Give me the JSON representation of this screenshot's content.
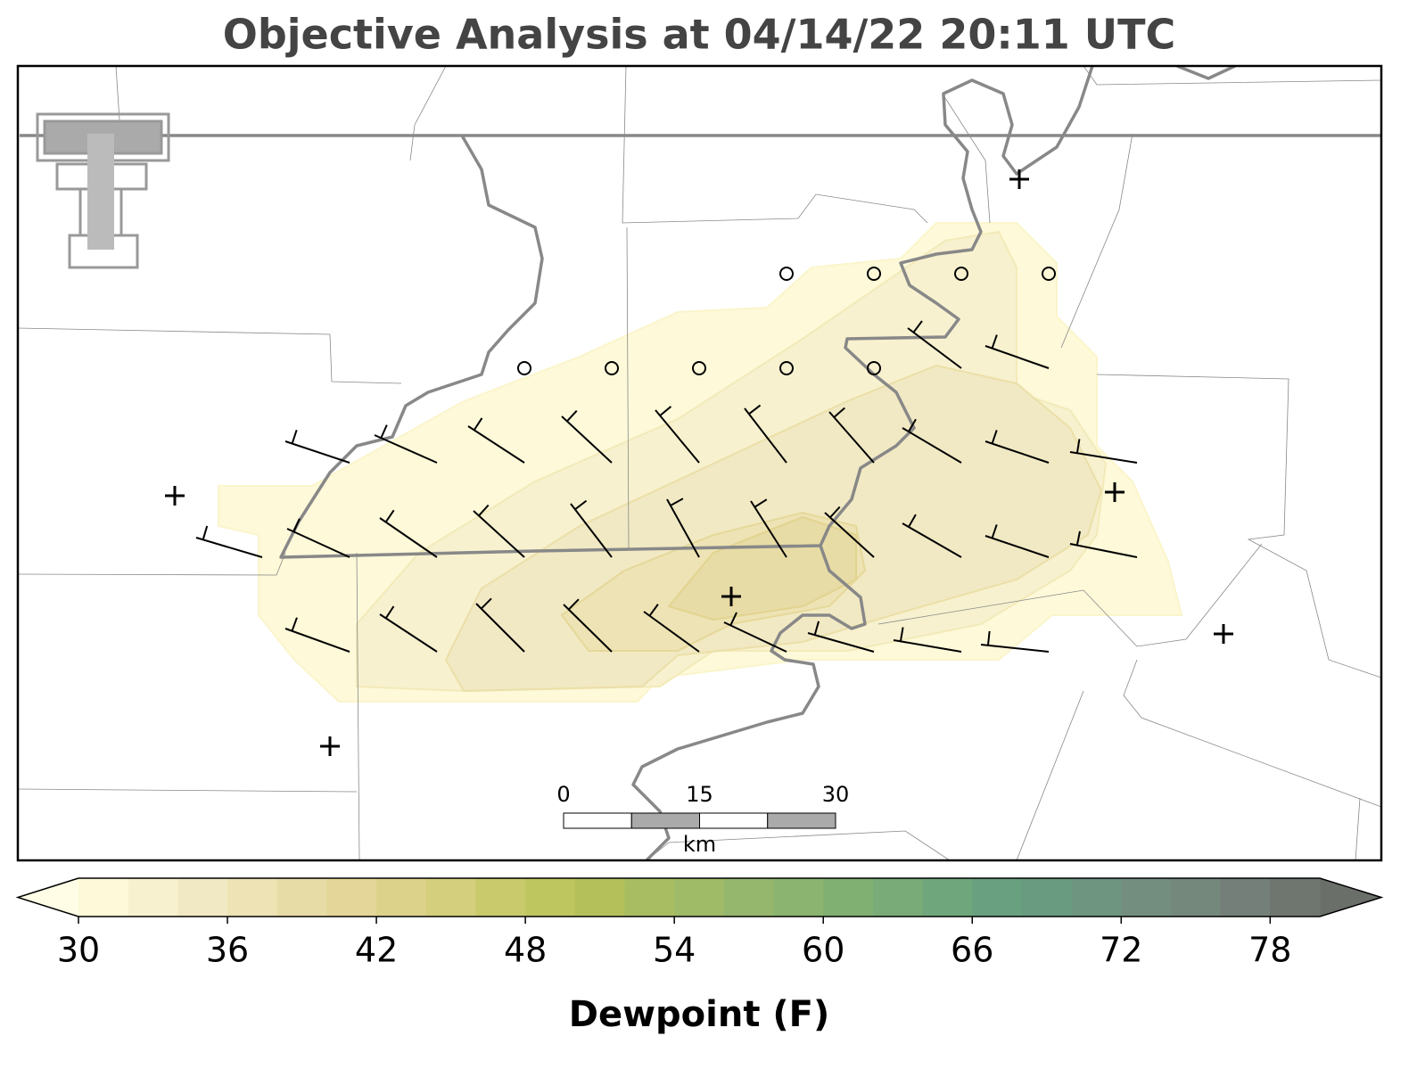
{
  "title": "Objective Analysis at 04/14/22 20:11 UTC",
  "colorbar": {
    "label": "Dewpoint (F)",
    "levels": [
      30,
      32,
      34,
      36,
      38,
      40,
      42,
      44,
      46,
      48,
      50,
      52,
      54,
      56,
      58,
      60,
      62,
      64,
      66,
      68,
      70,
      72,
      74,
      76,
      78,
      80
    ],
    "colors": [
      "#fdf9d9",
      "#f7f1cf",
      "#f1e9c3",
      "#ede3b4",
      "#e8dca6",
      "#e3d698",
      "#ddd28a",
      "#d4cf7c",
      "#c8ca6c",
      "#bec65f",
      "#b4c15a",
      "#a8bd62",
      "#9fbb68",
      "#95b76d",
      "#8bb470",
      "#81b073",
      "#78ab78",
      "#6fa67c",
      "#68a080",
      "#699b80",
      "#6e9580",
      "#738e7e",
      "#74887c",
      "#737f78",
      "#6f7670"
    ],
    "under_color": "#fffde6",
    "over_color": "#6b6f6a",
    "ticks": [
      30,
      36,
      42,
      48,
      54,
      60,
      66,
      72,
      78
    ]
  },
  "scale_bar": {
    "ticks": [
      0,
      15,
      30
    ],
    "unit": "km"
  }
}
